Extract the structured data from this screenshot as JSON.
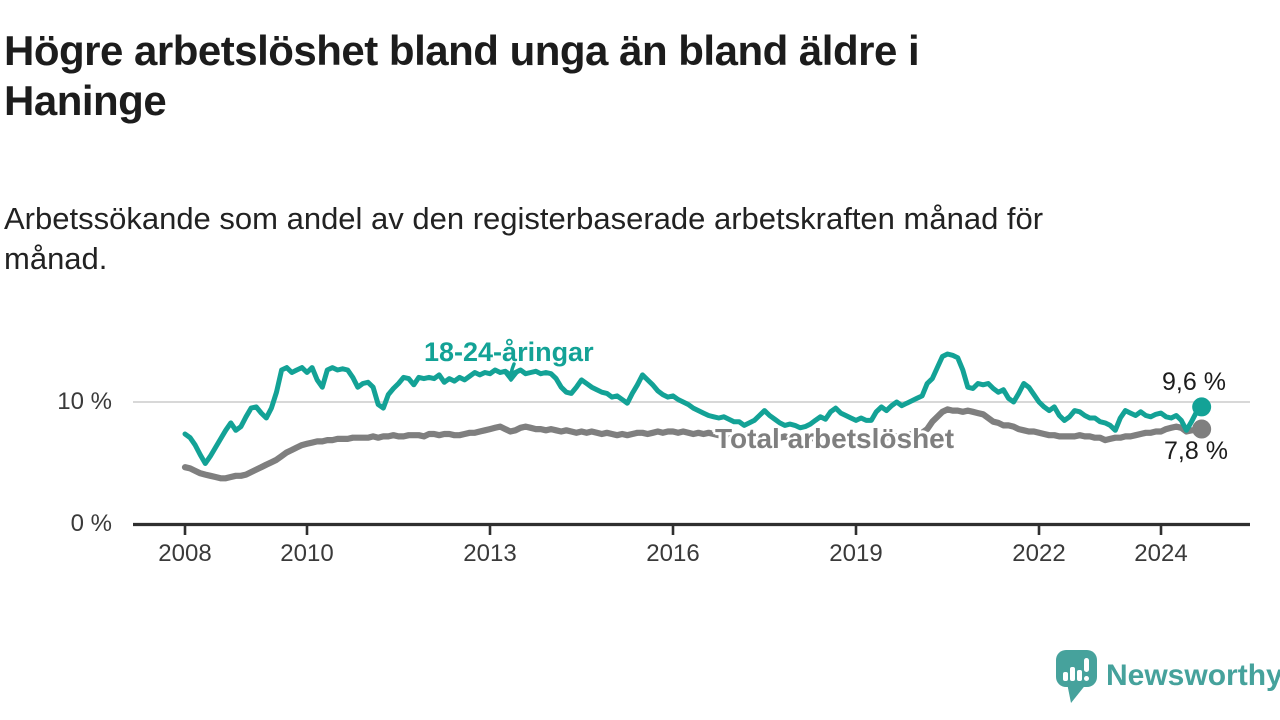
{
  "header": {
    "title": "Högre arbetslöshet bland unga än bland äldre i\nHaninge",
    "subtitle": "Arbetssökande som andel av den registerbaserade arbetskraften månad för\nmånad."
  },
  "chart_data": {
    "type": "line",
    "title": "Högre arbetslöshet bland unga än bland äldre i Haninge",
    "subtitle": "Arbetssökande som andel av den registerbaserade arbetskraften månad för månad.",
    "x_unit": "year-month",
    "x_start_year": 2008,
    "x_step_months": 1,
    "x_end": "2024-09",
    "x_ticks": [
      2008,
      2010,
      2013,
      2016,
      2019,
      2022,
      2024
    ],
    "y_ticks": [
      {
        "value": 0,
        "label": "0 %"
      },
      {
        "value": 10,
        "label": "10 %"
      }
    ],
    "ylim": [
      0,
      15.5
    ],
    "grid": "horizontal line at 10 % only",
    "legend_position": "labels drawn on lines",
    "series": [
      {
        "name": "18-24-åringar",
        "color": "#13a296",
        "end_label": "9,6 %",
        "end_value": 9.6,
        "values": [
          7.4,
          7.1,
          6.5,
          5.7,
          5.0,
          5.6,
          6.3,
          7.0,
          7.7,
          8.3,
          7.7,
          8.0,
          8.8,
          9.5,
          9.6,
          9.1,
          8.7,
          9.5,
          10.8,
          12.6,
          12.8,
          12.4,
          12.6,
          12.8,
          12.4,
          12.8,
          11.8,
          11.2,
          12.6,
          12.8,
          12.6,
          12.7,
          12.6,
          12.0,
          11.2,
          11.5,
          11.6,
          11.2,
          9.8,
          9.5,
          10.6,
          11.1,
          11.5,
          12.0,
          11.9,
          11.4,
          12.0,
          11.9,
          12.0,
          11.9,
          12.2,
          11.6,
          11.9,
          11.7,
          12.0,
          11.8,
          12.1,
          12.4,
          12.2,
          12.4,
          12.3,
          12.6,
          12.4,
          12.5,
          12.2,
          12.4,
          12.6,
          12.3,
          12.4,
          12.5,
          12.3,
          12.4,
          12.3,
          11.9,
          11.2,
          10.8,
          10.7,
          11.2,
          11.8,
          11.5,
          11.2,
          11.0,
          10.8,
          10.7,
          10.4,
          10.5,
          10.2,
          9.9,
          10.7,
          11.4,
          12.2,
          11.8,
          11.4,
          10.9,
          10.6,
          10.4,
          10.5,
          10.2,
          10.0,
          9.8,
          9.5,
          9.3,
          9.1,
          8.9,
          8.8,
          8.7,
          8.8,
          8.6,
          8.4,
          8.4,
          8.1,
          8.3,
          8.5,
          8.9,
          9.3,
          8.9,
          8.6,
          8.3,
          8.1,
          8.2,
          8.1,
          7.9,
          8.0,
          8.2,
          8.5,
          8.8,
          8.6,
          9.2,
          9.5,
          9.1,
          8.9,
          8.7,
          8.5,
          8.7,
          8.5,
          8.5,
          9.2,
          9.6,
          9.3,
          9.7,
          10.0,
          9.7,
          9.9,
          10.1,
          10.3,
          10.5,
          11.5,
          11.9,
          12.8,
          13.7,
          13.9,
          13.8,
          13.6,
          12.6,
          11.2,
          11.1,
          11.5,
          11.4,
          11.5,
          11.1,
          10.8,
          11.0,
          10.3,
          10.0,
          10.7,
          11.5,
          11.2,
          10.6,
          10.0,
          9.6,
          9.3,
          9.6,
          8.9,
          8.5,
          8.8,
          9.3,
          9.2,
          8.9,
          8.7,
          8.7,
          8.4,
          8.3,
          8.1,
          7.7,
          8.7,
          9.3,
          9.1,
          8.9,
          9.2,
          8.9,
          8.8,
          9.0,
          9.1,
          8.8,
          8.7,
          8.9,
          8.5,
          7.7,
          8.4,
          9.2,
          9.6
        ]
      },
      {
        "name": "Total arbetslöshet",
        "color": "#7f7f7f",
        "end_label": "7,8 %",
        "end_value": 7.8,
        "values": [
          4.7,
          4.6,
          4.4,
          4.2,
          4.1,
          4.0,
          3.9,
          3.8,
          3.8,
          3.9,
          4.0,
          4.0,
          4.1,
          4.3,
          4.5,
          4.7,
          4.9,
          5.1,
          5.3,
          5.6,
          5.9,
          6.1,
          6.3,
          6.5,
          6.6,
          6.7,
          6.8,
          6.8,
          6.9,
          6.9,
          7.0,
          7.0,
          7.0,
          7.1,
          7.1,
          7.1,
          7.1,
          7.2,
          7.1,
          7.2,
          7.2,
          7.3,
          7.2,
          7.2,
          7.3,
          7.3,
          7.3,
          7.2,
          7.4,
          7.4,
          7.3,
          7.4,
          7.4,
          7.3,
          7.3,
          7.4,
          7.5,
          7.5,
          7.6,
          7.7,
          7.8,
          7.9,
          8.0,
          7.8,
          7.6,
          7.7,
          7.9,
          8.0,
          7.9,
          7.8,
          7.8,
          7.7,
          7.8,
          7.7,
          7.6,
          7.7,
          7.6,
          7.5,
          7.6,
          7.5,
          7.6,
          7.5,
          7.4,
          7.5,
          7.4,
          7.3,
          7.4,
          7.3,
          7.4,
          7.5,
          7.5,
          7.4,
          7.5,
          7.6,
          7.5,
          7.6,
          7.6,
          7.5,
          7.6,
          7.5,
          7.4,
          7.5,
          7.4,
          7.5,
          7.4,
          7.3,
          7.4,
          7.3,
          7.3,
          7.2,
          7.3,
          7.2,
          7.2,
          7.3,
          7.2,
          7.1,
          7.2,
          7.1,
          7.2,
          7.1,
          7.2,
          7.1,
          7.0,
          7.1,
          7.0,
          7.1,
          7.0,
          7.1,
          7.0,
          7.1,
          7.0,
          7.0,
          7.0,
          7.1,
          7.0,
          7.1,
          7.1,
          7.2,
          7.1,
          7.2,
          7.2,
          7.3,
          7.3,
          7.4,
          7.4,
          7.5,
          7.8,
          8.4,
          8.8,
          9.2,
          9.4,
          9.3,
          9.3,
          9.2,
          9.3,
          9.2,
          9.1,
          9.0,
          8.7,
          8.4,
          8.3,
          8.1,
          8.1,
          8.0,
          7.8,
          7.7,
          7.6,
          7.6,
          7.5,
          7.4,
          7.3,
          7.3,
          7.2,
          7.2,
          7.2,
          7.2,
          7.3,
          7.2,
          7.2,
          7.1,
          7.1,
          6.9,
          7.0,
          7.1,
          7.1,
          7.2,
          7.2,
          7.3,
          7.4,
          7.5,
          7.5,
          7.6,
          7.6,
          7.8,
          7.9,
          8.0,
          7.9,
          7.6,
          7.7,
          7.7,
          7.8
        ]
      }
    ]
  },
  "footer": {
    "brand": "Newsworthy",
    "brand_color": "#46a29c"
  }
}
